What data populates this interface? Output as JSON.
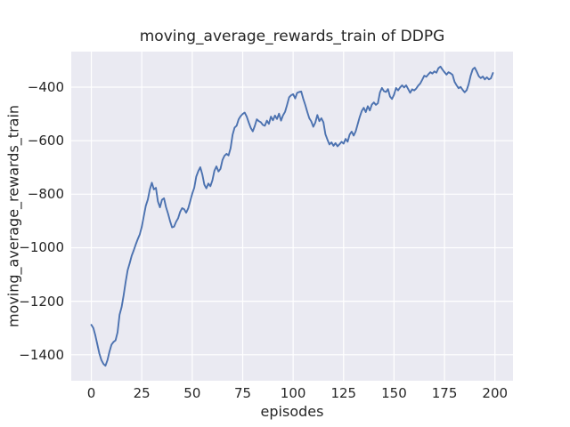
{
  "figure": {
    "background": "#ffffff",
    "plot_background": "#eaeaf2",
    "grid_color": "#ffffff",
    "text_color": "#262626"
  },
  "chart_data": {
    "type": "line",
    "title": "moving_average_rewards_train of DDPG",
    "xlabel": "episodes",
    "ylabel": "moving_average_rewards_train",
    "legend": "none",
    "grid": true,
    "line_color": "#4C72B0",
    "xlim": [
      -9.95,
      208.95
    ],
    "ylim": [
      -1497,
      -267
    ],
    "x_ticks": [
      0,
      25,
      50,
      75,
      100,
      125,
      150,
      175,
      200
    ],
    "x_tick_labels": [
      "0",
      "25",
      "50",
      "75",
      "100",
      "125",
      "150",
      "175",
      "200"
    ],
    "y_ticks": [
      -400,
      -600,
      -800,
      -1000,
      -1200,
      -1400
    ],
    "y_tick_labels": [
      "−400",
      "−600",
      "−800",
      "−1000",
      "−1200",
      "−1400"
    ],
    "series": [
      {
        "name": "moving_average_rewards_train",
        "x_start": 0,
        "x_step": 1,
        "values": [
          -1288,
          -1300,
          -1328,
          -1362,
          -1396,
          -1420,
          -1434,
          -1441,
          -1420,
          -1388,
          -1362,
          -1352,
          -1346,
          -1316,
          -1250,
          -1222,
          -1178,
          -1128,
          -1084,
          -1058,
          -1030,
          -1010,
          -988,
          -968,
          -950,
          -922,
          -882,
          -843,
          -820,
          -782,
          -757,
          -782,
          -776,
          -827,
          -849,
          -821,
          -815,
          -848,
          -872,
          -900,
          -924,
          -921,
          -903,
          -890,
          -866,
          -852,
          -856,
          -869,
          -853,
          -826,
          -798,
          -776,
          -734,
          -714,
          -699,
          -726,
          -764,
          -778,
          -760,
          -770,
          -748,
          -712,
          -696,
          -715,
          -705,
          -672,
          -656,
          -649,
          -655,
          -628,
          -578,
          -551,
          -544,
          -520,
          -508,
          -500,
          -495,
          -510,
          -532,
          -552,
          -565,
          -545,
          -520,
          -527,
          -531,
          -541,
          -544,
          -525,
          -537,
          -510,
          -524,
          -506,
          -519,
          -499,
          -525,
          -505,
          -492,
          -466,
          -438,
          -430,
          -426,
          -442,
          -421,
          -418,
          -416,
          -443,
          -466,
          -492,
          -516,
          -528,
          -548,
          -532,
          -504,
          -527,
          -516,
          -531,
          -576,
          -596,
          -614,
          -606,
          -619,
          -609,
          -621,
          -613,
          -604,
          -611,
          -593,
          -604,
          -577,
          -566,
          -581,
          -565,
          -538,
          -511,
          -489,
          -477,
          -493,
          -471,
          -487,
          -465,
          -457,
          -466,
          -460,
          -420,
          -403,
          -415,
          -418,
          -407,
          -435,
          -444,
          -428,
          -403,
          -412,
          -401,
          -393,
          -401,
          -393,
          -407,
          -421,
          -408,
          -412,
          -405,
          -394,
          -386,
          -372,
          -357,
          -361,
          -352,
          -344,
          -349,
          -341,
          -346,
          -329,
          -323,
          -334,
          -344,
          -353,
          -344,
          -348,
          -354,
          -380,
          -393,
          -404,
          -399,
          -410,
          -419,
          -411,
          -388,
          -356,
          -333,
          -327,
          -342,
          -359,
          -366,
          -360,
          -371,
          -363,
          -371,
          -367,
          -347
        ]
      }
    ]
  }
}
